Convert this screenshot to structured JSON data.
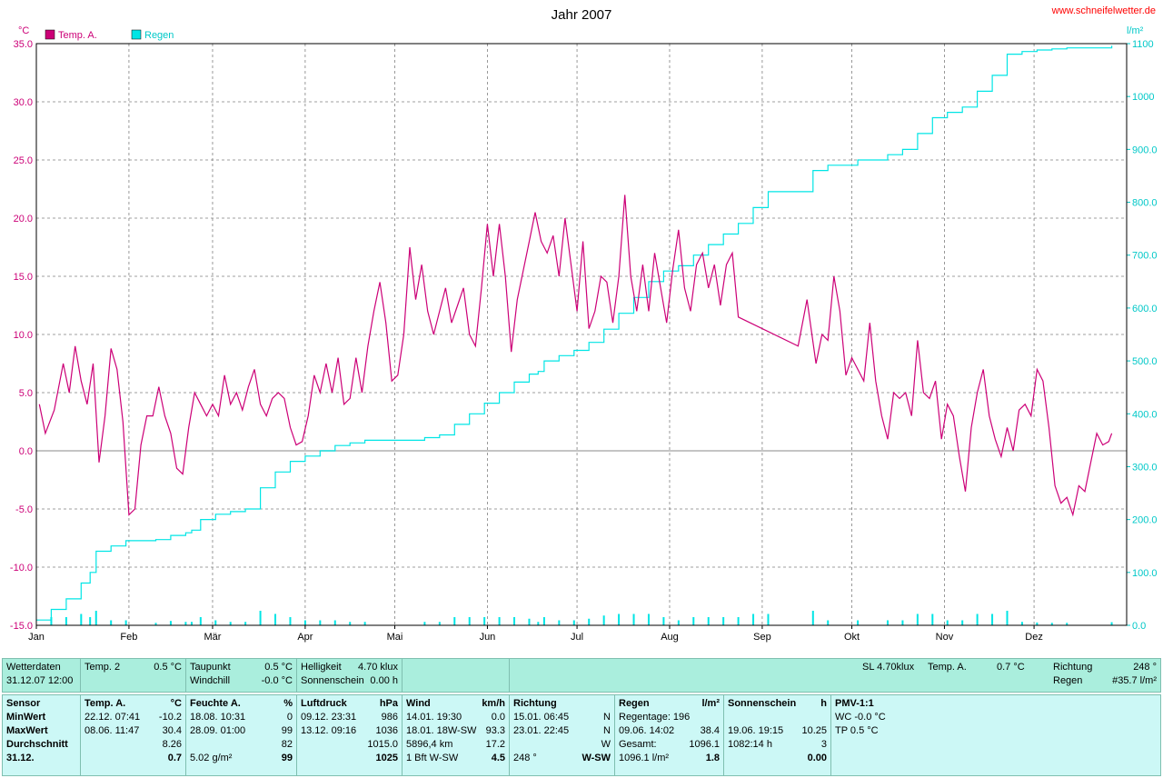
{
  "site": "www.schneifelwetter.de",
  "chart_data": {
    "type": "line",
    "title": "Jahr 2007",
    "left_unit": "°C",
    "right_unit": "l/m²",
    "x_labels": [
      "Jan",
      "Feb",
      "Mär",
      "Apr",
      "Mai",
      "Jun",
      "Jul",
      "Aug",
      "Sep",
      "Okt",
      "Nov",
      "Dez"
    ],
    "y_left": {
      "min": -15,
      "max": 35,
      "ticks": [
        "-15.0",
        "-10.0",
        "-5.0",
        "0.0",
        "5.0",
        "10.0",
        "15.0",
        "20.0",
        "25.0",
        "30.0",
        "35.0"
      ]
    },
    "y_right": {
      "min": 0,
      "max": 1100,
      "ticks": [
        "0.0",
        "100.0",
        "200.0",
        "300.0",
        "400.0",
        "500.0",
        "600.0",
        "700.0",
        "800.0",
        "900.0",
        "1000",
        "1100"
      ]
    },
    "legend": [
      "Temp. A.",
      "Regen"
    ],
    "colors": {
      "temp": "#cc0077",
      "rain": "#00e5e5",
      "grid": "#808080"
    },
    "series": [
      {
        "name": "Temp. A.",
        "axis": "left",
        "values": [
          [
            1,
            4.0
          ],
          [
            3,
            1.5
          ],
          [
            6,
            3.5
          ],
          [
            9,
            7.5
          ],
          [
            11,
            5.0
          ],
          [
            13,
            9.0
          ],
          [
            15,
            6.0
          ],
          [
            17,
            4.0
          ],
          [
            19,
            7.5
          ],
          [
            21,
            -1.0
          ],
          [
            23,
            3.0
          ],
          [
            25,
            8.8
          ],
          [
            27,
            7.0
          ],
          [
            29,
            2.5
          ],
          [
            31,
            -5.5
          ],
          [
            33,
            -5.0
          ],
          [
            35,
            0.5
          ],
          [
            37,
            3.0
          ],
          [
            39,
            3.0
          ],
          [
            41,
            5.5
          ],
          [
            43,
            3.0
          ],
          [
            45,
            1.5
          ],
          [
            47,
            -1.5
          ],
          [
            49,
            -2.0
          ],
          [
            51,
            2.0
          ],
          [
            53,
            5.0
          ],
          [
            55,
            4.0
          ],
          [
            57,
            3.0
          ],
          [
            59,
            4.0
          ],
          [
            61,
            3.0
          ],
          [
            63,
            6.5
          ],
          [
            65,
            4.0
          ],
          [
            67,
            5.0
          ],
          [
            69,
            3.5
          ],
          [
            71,
            5.5
          ],
          [
            73,
            7.0
          ],
          [
            75,
            4.0
          ],
          [
            77,
            3.0
          ],
          [
            79,
            4.5
          ],
          [
            81,
            5.0
          ],
          [
            83,
            4.5
          ],
          [
            85,
            2.0
          ],
          [
            87,
            0.5
          ],
          [
            89,
            0.8
          ],
          [
            91,
            3.0
          ],
          [
            93,
            6.5
          ],
          [
            95,
            5.0
          ],
          [
            97,
            7.5
          ],
          [
            99,
            5.0
          ],
          [
            101,
            8.0
          ],
          [
            103,
            4.0
          ],
          [
            105,
            4.5
          ],
          [
            107,
            8.0
          ],
          [
            109,
            5.0
          ],
          [
            111,
            9.0
          ],
          [
            113,
            12.0
          ],
          [
            115,
            14.5
          ],
          [
            117,
            11.0
          ],
          [
            119,
            6.0
          ],
          [
            121,
            6.5
          ],
          [
            123,
            10.0
          ],
          [
            125,
            17.5
          ],
          [
            127,
            13.0
          ],
          [
            129,
            16.0
          ],
          [
            131,
            12.0
          ],
          [
            133,
            10.0
          ],
          [
            135,
            12.0
          ],
          [
            137,
            14.0
          ],
          [
            139,
            11.0
          ],
          [
            141,
            12.5
          ],
          [
            143,
            14.0
          ],
          [
            145,
            10.0
          ],
          [
            147,
            9.0
          ],
          [
            149,
            14.0
          ],
          [
            151,
            19.5
          ],
          [
            153,
            15.0
          ],
          [
            155,
            19.5
          ],
          [
            157,
            15.0
          ],
          [
            159,
            8.5
          ],
          [
            161,
            13.0
          ],
          [
            163,
            15.5
          ],
          [
            165,
            18.0
          ],
          [
            167,
            20.5
          ],
          [
            169,
            18.0
          ],
          [
            171,
            17.0
          ],
          [
            173,
            18.5
          ],
          [
            175,
            15.0
          ],
          [
            177,
            20.0
          ],
          [
            179,
            16.0
          ],
          [
            181,
            12.0
          ],
          [
            183,
            18.0
          ],
          [
            185,
            10.5
          ],
          [
            187,
            12.0
          ],
          [
            189,
            15.0
          ],
          [
            191,
            14.5
          ],
          [
            193,
            11.0
          ],
          [
            195,
            15.0
          ],
          [
            197,
            22.0
          ],
          [
            199,
            15.0
          ],
          [
            201,
            12.0
          ],
          [
            203,
            16.0
          ],
          [
            205,
            12.0
          ],
          [
            207,
            17.0
          ],
          [
            209,
            14.0
          ],
          [
            211,
            11.0
          ],
          [
            213,
            15.5
          ],
          [
            215,
            19.0
          ],
          [
            217,
            14.0
          ],
          [
            219,
            12.0
          ],
          [
            221,
            16.0
          ],
          [
            223,
            17.0
          ],
          [
            225,
            14.0
          ],
          [
            227,
            16.0
          ],
          [
            229,
            12.5
          ],
          [
            231,
            16.0
          ],
          [
            233,
            17.0
          ],
          [
            235,
            11.5
          ],
          [
            255,
            9.0
          ],
          [
            258,
            13.0
          ],
          [
            261,
            7.5
          ],
          [
            263,
            10.0
          ],
          [
            265,
            9.5
          ],
          [
            267,
            15.0
          ],
          [
            269,
            12.0
          ],
          [
            271,
            6.5
          ],
          [
            273,
            8.0
          ],
          [
            275,
            7.0
          ],
          [
            277,
            6.0
          ],
          [
            279,
            11.0
          ],
          [
            281,
            6.0
          ],
          [
            283,
            3.0
          ],
          [
            285,
            1.0
          ],
          [
            287,
            5.0
          ],
          [
            289,
            4.5
          ],
          [
            291,
            5.0
          ],
          [
            293,
            3.0
          ],
          [
            295,
            9.5
          ],
          [
            297,
            5.0
          ],
          [
            299,
            4.5
          ],
          [
            301,
            6.0
          ],
          [
            303,
            1.0
          ],
          [
            305,
            4.0
          ],
          [
            307,
            3.0
          ],
          [
            309,
            -0.5
          ],
          [
            311,
            -3.5
          ],
          [
            313,
            2.0
          ],
          [
            315,
            5.0
          ],
          [
            317,
            7.0
          ],
          [
            319,
            3.0
          ],
          [
            321,
            1.0
          ],
          [
            323,
            -0.5
          ],
          [
            325,
            2.0
          ],
          [
            327,
            0.0
          ],
          [
            329,
            3.5
          ],
          [
            331,
            4.0
          ],
          [
            333,
            3.0
          ],
          [
            335,
            7.0
          ],
          [
            337,
            6.0
          ],
          [
            339,
            2.0
          ],
          [
            341,
            -3.0
          ],
          [
            343,
            -4.5
          ],
          [
            345,
            -4.0
          ],
          [
            347,
            -5.5
          ],
          [
            349,
            -3.0
          ],
          [
            351,
            -3.5
          ],
          [
            353,
            -1.0
          ],
          [
            355,
            1.5
          ],
          [
            357,
            0.5
          ],
          [
            359,
            0.8
          ],
          [
            360,
            1.5
          ]
        ]
      },
      {
        "name": "Regen",
        "axis": "right",
        "values": [
          [
            0,
            10
          ],
          [
            5,
            30
          ],
          [
            10,
            50
          ],
          [
            15,
            80
          ],
          [
            18,
            100
          ],
          [
            20,
            140
          ],
          [
            25,
            150
          ],
          [
            30,
            160
          ],
          [
            40,
            162
          ],
          [
            45,
            170
          ],
          [
            50,
            175
          ],
          [
            52,
            180
          ],
          [
            55,
            200
          ],
          [
            60,
            210
          ],
          [
            65,
            215
          ],
          [
            70,
            220
          ],
          [
            75,
            260
          ],
          [
            80,
            290
          ],
          [
            85,
            310
          ],
          [
            90,
            320
          ],
          [
            95,
            330
          ],
          [
            100,
            340
          ],
          [
            105,
            345
          ],
          [
            110,
            350
          ],
          [
            125,
            350
          ],
          [
            130,
            355
          ],
          [
            135,
            360
          ],
          [
            140,
            380
          ],
          [
            145,
            400
          ],
          [
            150,
            420
          ],
          [
            155,
            440
          ],
          [
            160,
            460
          ],
          [
            165,
            475
          ],
          [
            168,
            480
          ],
          [
            170,
            500
          ],
          [
            175,
            510
          ],
          [
            180,
            520
          ],
          [
            185,
            535
          ],
          [
            190,
            560
          ],
          [
            195,
            590
          ],
          [
            200,
            620
          ],
          [
            205,
            650
          ],
          [
            210,
            670
          ],
          [
            215,
            680
          ],
          [
            220,
            700
          ],
          [
            225,
            720
          ],
          [
            230,
            740
          ],
          [
            235,
            760
          ],
          [
            240,
            790
          ],
          [
            245,
            820
          ],
          [
            255,
            820
          ],
          [
            260,
            860
          ],
          [
            265,
            870
          ],
          [
            270,
            870
          ],
          [
            275,
            880
          ],
          [
            280,
            880
          ],
          [
            285,
            890
          ],
          [
            290,
            900
          ],
          [
            295,
            930
          ],
          [
            300,
            960
          ],
          [
            305,
            970
          ],
          [
            310,
            980
          ],
          [
            315,
            1010
          ],
          [
            320,
            1040
          ],
          [
            325,
            1080
          ],
          [
            330,
            1085
          ],
          [
            335,
            1088
          ],
          [
            340,
            1090
          ],
          [
            345,
            1092
          ],
          [
            360,
            1096
          ]
        ]
      }
    ]
  },
  "row1": {
    "wetter": {
      "label": "Wetterdaten",
      "datetime": "31.12.07 12:00"
    },
    "temp2": {
      "label": "Temp. 2",
      "value": "0.5 °C"
    },
    "taupunkt": {
      "label": "Taupunkt",
      "value": "0.5 °C"
    },
    "windchill": {
      "label": "Windchill",
      "value": "-0.0 °C"
    },
    "helligkeit": {
      "label": "Helligkeit",
      "value": "4.70 klux"
    },
    "sonnenschein": {
      "label": "Sonnenschein",
      "value": "0.00 h"
    },
    "sl": "SL 4.70klux",
    "tempA_label": "Temp. A.",
    "tempA_value": "0.7 °C",
    "richtung_label": "Richtung",
    "richtung_value": "248 °",
    "regen_label": "Regen",
    "regen_value": "#35.7 l/m²"
  },
  "row2": {
    "sensor": [
      "Sensor",
      "MinWert",
      "MaxWert",
      "Durchschnitt",
      "31.12."
    ],
    "temp": {
      "head": "Temp. A.",
      "unit": "°C",
      "rows": [
        [
          "22.12.  07:41",
          "-10.2"
        ],
        [
          "08.06.  11:47",
          "30.4"
        ],
        [
          "",
          "8.26"
        ],
        [
          "",
          "0.7"
        ]
      ]
    },
    "feuchte": {
      "head": "Feuchte A.",
      "unit": "%",
      "rows": [
        [
          "18.08.  10:31",
          "0"
        ],
        [
          "28.09.  01:00",
          "99"
        ],
        [
          "",
          "82"
        ],
        [
          "5.02 g/m²",
          "99"
        ]
      ]
    },
    "luft": {
      "head": "Luftdruck",
      "unit": "hPa",
      "rows": [
        [
          "09.12.  23:31",
          "986"
        ],
        [
          "13.12.  09:16",
          "1036"
        ],
        [
          "",
          "1015.0"
        ],
        [
          "",
          "1025"
        ]
      ]
    },
    "wind": {
      "head": "Wind",
      "unit": "km/h",
      "rows": [
        [
          "14.01.  19:30",
          "0.0"
        ],
        [
          "18.01.  18W-SW",
          "93.3"
        ],
        [
          "5896,4 km",
          "17.2"
        ],
        [
          "1 Bft W-SW",
          "4.5"
        ]
      ]
    },
    "richtung": {
      "head": "Richtung",
      "unit": "",
      "rows": [
        [
          "15.01.  06:45",
          "N"
        ],
        [
          "23.01.  22:45",
          "N"
        ],
        [
          "",
          "W"
        ],
        [
          "248 °",
          "W-SW"
        ]
      ]
    },
    "regen": {
      "head": "Regen",
      "unit": "l/m²",
      "rows": [
        [
          "Regentage: 196",
          ""
        ],
        [
          "09.06.  14:02",
          "38.4"
        ],
        [
          "Gesamt:",
          "1096.1"
        ],
        [
          "1096.1 l/m²",
          "1.8"
        ]
      ]
    },
    "sonne": {
      "head": "Sonnenschein",
      "unit": "h",
      "rows": [
        [
          "",
          ""
        ],
        [
          "19.06.  19:15",
          "10.25"
        ],
        [
          "1082:14 h",
          "3"
        ],
        [
          "",
          "0.00"
        ]
      ]
    },
    "pmv": {
      "head": "PMV-1:1",
      "rows": [
        "WC -0.0 °C",
        "TP 0.5 °C"
      ]
    }
  }
}
